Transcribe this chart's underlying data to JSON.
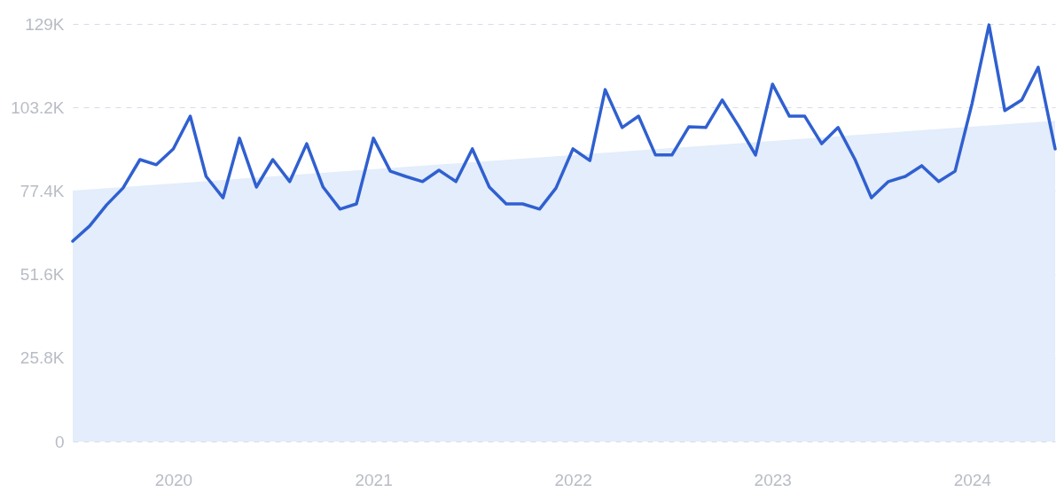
{
  "chart_data": {
    "type": "line",
    "xlim": [
      "2019-07",
      "2024-06"
    ],
    "xticks": [
      "2020",
      "2021",
      "2022",
      "2023",
      "2024"
    ],
    "ylim": [
      0,
      129
    ],
    "yticks": [
      {
        "value": 0,
        "label": "0"
      },
      {
        "value": 25.8,
        "label": "25.8K"
      },
      {
        "value": 51.6,
        "label": "51.6K"
      },
      {
        "value": 77.4,
        "label": "77.4K"
      },
      {
        "value": 103.2,
        "label": "103.2K"
      },
      {
        "value": 129,
        "label": "129K"
      }
    ],
    "grid": "y",
    "series": [
      {
        "type": "area",
        "color": "#e3edfb",
        "x": [
          "2019-07",
          "2024-06"
        ],
        "values": [
          77.5,
          99.1
        ]
      },
      {
        "color": "#3060d0",
        "x": [
          "2019-07",
          "2019-08",
          "2019-09",
          "2019-10",
          "2019-11",
          "2019-12",
          "2020-01",
          "2020-02",
          "2020-03",
          "2020-04",
          "2020-05",
          "2020-06",
          "2020-07",
          "2020-08",
          "2020-09",
          "2020-10",
          "2020-11",
          "2020-12",
          "2021-01",
          "2021-02",
          "2021-03",
          "2021-04",
          "2021-05",
          "2021-06",
          "2021-07",
          "2021-08",
          "2021-09",
          "2021-10",
          "2021-11",
          "2021-12",
          "2022-01",
          "2022-02",
          "2022-03",
          "2022-04",
          "2022-05",
          "2022-06",
          "2022-07",
          "2022-08",
          "2022-09",
          "2022-10",
          "2022-11",
          "2022-12",
          "2023-01",
          "2023-02",
          "2023-03",
          "2023-04",
          "2023-05",
          "2023-06",
          "2023-07",
          "2023-08",
          "2023-09",
          "2023-10",
          "2023-11",
          "2023-12",
          "2024-01",
          "2024-02",
          "2024-03",
          "2024-04",
          "2024-05",
          "2024-06"
        ],
        "values": [
          61.9,
          66.6,
          73.1,
          78.3,
          87.1,
          85.5,
          90.4,
          100.5,
          81.9,
          75.3,
          93.7,
          78.6,
          87.1,
          80.3,
          92.0,
          78.6,
          71.8,
          73.4,
          93.7,
          83.5,
          81.9,
          80.3,
          83.8,
          80.3,
          90.4,
          78.6,
          73.4,
          73.4,
          71.8,
          78.3,
          90.4,
          86.8,
          108.7,
          97.0,
          100.5,
          88.5,
          88.5,
          97.2,
          97.0,
          105.5,
          97.2,
          88.5,
          110.4,
          100.5,
          100.5,
          92.0,
          97.0,
          87.1,
          75.3,
          80.3,
          81.9,
          85.2,
          80.3,
          83.5,
          104.4,
          128.7,
          102.2,
          105.5,
          115.6,
          90.4
        ]
      }
    ]
  }
}
